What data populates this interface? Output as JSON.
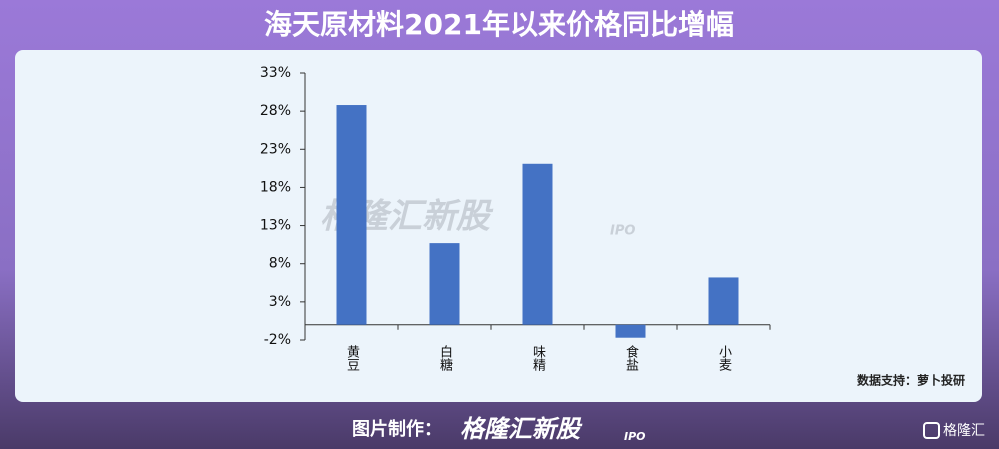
{
  "chart_data": {
    "type": "bar",
    "title": "海天原材料2021年以来价格同比增幅",
    "categories": [
      "黄豆",
      "白糖",
      "味精",
      "食盐",
      "小麦"
    ],
    "values": [
      28.8,
      10.7,
      21.1,
      -1.7,
      6.2
    ],
    "color": "#4472c4",
    "ylim": [
      -2,
      33
    ],
    "yticks": [
      {
        "value": -2,
        "label": "-2%"
      },
      {
        "value": 3,
        "label": "3%"
      },
      {
        "value": 8,
        "label": "8%"
      },
      {
        "value": 13,
        "label": "13%"
      },
      {
        "value": 18,
        "label": "18%"
      },
      {
        "value": 23,
        "label": "23%"
      },
      {
        "value": 28,
        "label": "28%"
      },
      {
        "value": 33,
        "label": "33%"
      }
    ],
    "grid": false,
    "watermark": {
      "brand": "格隆汇新股",
      "tag": "IPO"
    },
    "source": "数据支持：萝卜投研"
  },
  "footer": {
    "label": "图片制作：",
    "brand": "格隆汇新股",
    "tag": "IPO",
    "logo": "格隆汇"
  }
}
